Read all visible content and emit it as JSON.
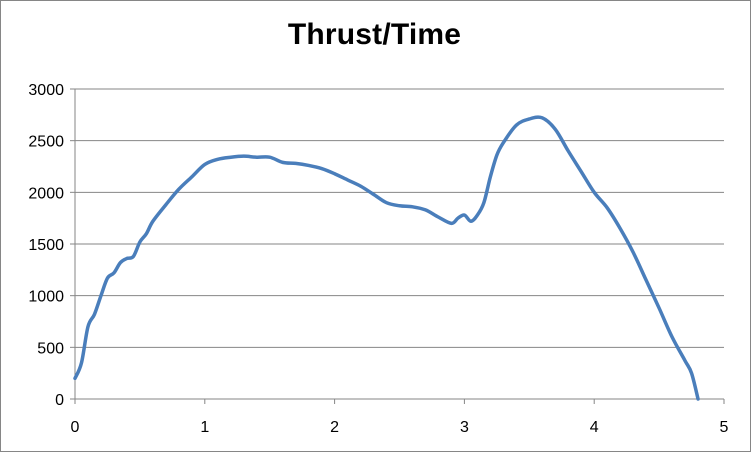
{
  "chart_data": {
    "type": "line",
    "title": "Thrust/Time",
    "xlabel": "",
    "ylabel": "",
    "xlim": [
      0,
      5
    ],
    "ylim": [
      0,
      3000
    ],
    "x_ticks": [
      0,
      1,
      2,
      3,
      4,
      5
    ],
    "y_ticks": [
      0,
      500,
      1000,
      1500,
      2000,
      2500,
      3000
    ],
    "grid": "horizontal",
    "legend": "none",
    "line_color": "#4a7ebb",
    "series": [
      {
        "x": [
          0,
          0.05,
          0.1,
          0.15,
          0.2,
          0.25,
          0.3,
          0.35,
          0.4,
          0.45,
          0.5,
          0.55,
          0.6,
          0.7,
          0.8,
          0.9,
          1.0,
          1.1,
          1.2,
          1.3,
          1.4,
          1.5,
          1.6,
          1.7,
          1.8,
          1.9,
          2.0,
          2.1,
          2.2,
          2.3,
          2.4,
          2.5,
          2.6,
          2.7,
          2.8,
          2.9,
          2.95,
          3.0,
          3.05,
          3.1,
          3.15,
          3.2,
          3.25,
          3.3,
          3.4,
          3.5,
          3.6,
          3.7,
          3.8,
          3.9,
          4.0,
          4.1,
          4.2,
          4.3,
          4.4,
          4.5,
          4.6,
          4.7,
          4.75,
          4.8
        ],
        "y": [
          200,
          350,
          700,
          820,
          1000,
          1170,
          1220,
          1320,
          1360,
          1380,
          1520,
          1600,
          1720,
          1880,
          2030,
          2150,
          2270,
          2320,
          2340,
          2350,
          2340,
          2340,
          2290,
          2280,
          2260,
          2230,
          2180,
          2120,
          2060,
          1980,
          1900,
          1870,
          1860,
          1830,
          1760,
          1700,
          1750,
          1780,
          1720,
          1780,
          1900,
          2150,
          2360,
          2480,
          2650,
          2710,
          2720,
          2610,
          2400,
          2200,
          2000,
          1850,
          1650,
          1420,
          1150,
          880,
          600,
          370,
          250,
          0
        ]
      }
    ]
  }
}
